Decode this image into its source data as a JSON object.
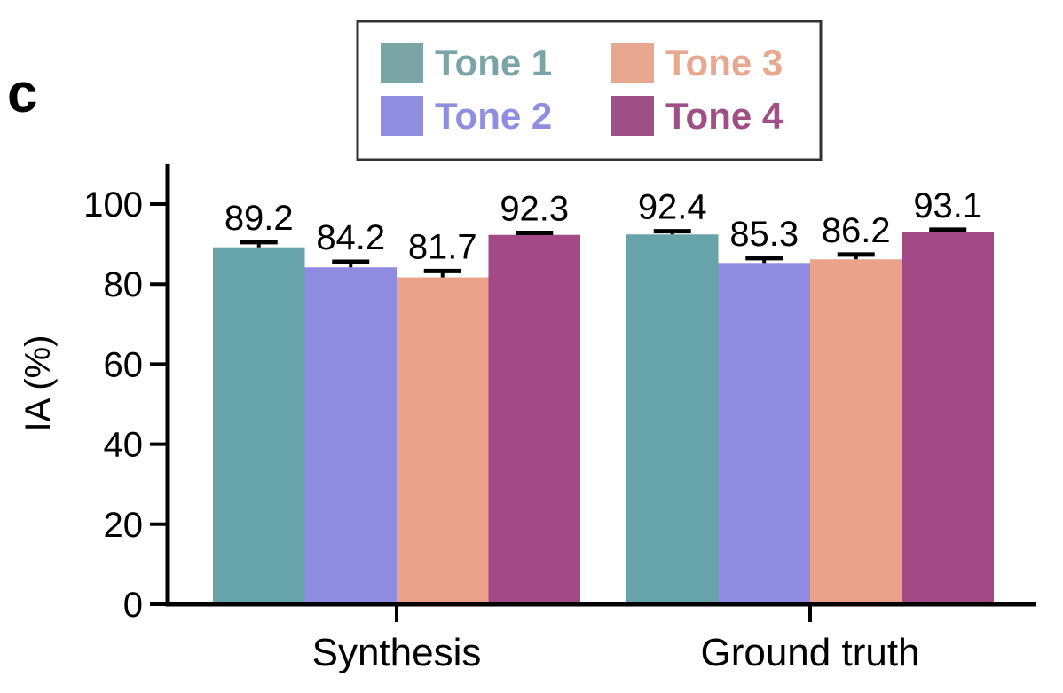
{
  "panel_label": "c",
  "chart_data": {
    "type": "bar",
    "categories": [
      "Synthesis",
      "Ground truth"
    ],
    "series": [
      {
        "name": "Tone 1",
        "color": "#67a3aa",
        "legend_color": "#7aa4a6",
        "values": [
          89.2,
          92.4
        ],
        "errors": [
          1.3,
          0.8
        ]
      },
      {
        "name": "Tone 2",
        "color": "#8f8be0",
        "legend_color": "#908ee0",
        "values": [
          84.2,
          85.3
        ],
        "errors": [
          1.4,
          1.2
        ]
      },
      {
        "name": "Tone 3",
        "color": "#eaa28a",
        "legend_color": "#e8a890",
        "values": [
          81.7,
          86.2
        ],
        "errors": [
          1.6,
          1.2
        ]
      },
      {
        "name": "Tone 4",
        "color": "#a34a86",
        "legend_color": "#9e4f85",
        "values": [
          92.3,
          93.1
        ],
        "errors": [
          0.5,
          0.5
        ]
      }
    ],
    "ylabel": "IA (%)",
    "xlabel": "",
    "ylim": [
      0,
      110
    ],
    "yticks": [
      0,
      20,
      40,
      60,
      80,
      100
    ],
    "grid": false,
    "legend_position": "top-center"
  }
}
